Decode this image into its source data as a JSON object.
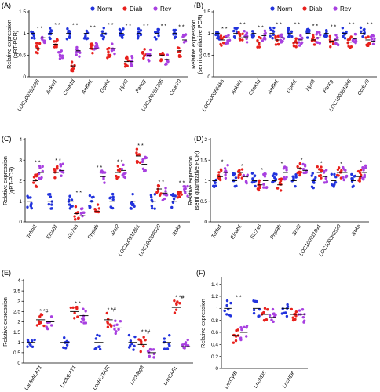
{
  "legend": [
    {
      "name": "Norm",
      "color": "#2233dd"
    },
    {
      "name": "Diab",
      "color": "#e8201c"
    },
    {
      "name": "Rev",
      "color": "#a840e0"
    }
  ],
  "chart_data": [
    {
      "panel": "(A)",
      "type": "scatter",
      "ylabel_lines": [
        "Relative expression",
        "(qRT-PCR)"
      ],
      "ylim": [
        0,
        1.5
      ],
      "yticks": [
        0,
        0.5,
        1,
        1.5
      ],
      "categories": [
        "LOC100362486",
        "Ankef1",
        "Csnk1d",
        "Ankle1",
        "Gpr61",
        "Nprl3",
        "Fancg",
        "LOC100361265",
        "Ccdc70"
      ],
      "groups": [
        "Norm",
        "Diab",
        "Rev"
      ],
      "means": [
        [
          1.0,
          0.65,
          0.9
        ],
        [
          1.0,
          0.75,
          0.55
        ],
        [
          1.0,
          0.25,
          0.6
        ],
        [
          1.0,
          0.65,
          0.65
        ],
        [
          1.0,
          0.55,
          0.65
        ],
        [
          1.0,
          0.35,
          0.35
        ],
        [
          1.0,
          0.55,
          0.5
        ],
        [
          1.0,
          0.5,
          0.4
        ],
        [
          1.0,
          0.6,
          0.85
        ]
      ],
      "stars": [
        "* *",
        "* *",
        "* *",
        "* *",
        "* *",
        "* *",
        "* *",
        "* *",
        "* *"
      ]
    },
    {
      "panel": "(B)",
      "type": "scatter",
      "ylabel_lines": [
        "Relative expression",
        "(semi quantitative PCR)"
      ],
      "ylim": [
        0,
        1.5
      ],
      "yticks": [
        0,
        0.5,
        1,
        1.5
      ],
      "categories": [
        "LOC100362486",
        "Ankef1",
        "Csnk1d",
        "Ankle1",
        "Gpr61",
        "Nprl3",
        "Fancg",
        "LOC100361265",
        "Ccdc70"
      ],
      "groups": [
        "Norm",
        "Diab",
        "Rev"
      ],
      "means": [
        [
          1.0,
          0.85,
          0.9
        ],
        [
          1.0,
          0.9,
          0.92
        ],
        [
          1.0,
          0.8,
          0.95
        ],
        [
          1.0,
          0.85,
          0.9
        ],
        [
          1.0,
          0.8,
          0.85
        ],
        [
          1.0,
          0.85,
          0.9
        ],
        [
          1.0,
          0.82,
          0.85
        ],
        [
          1.0,
          0.8,
          0.88
        ],
        [
          1.0,
          0.85,
          0.82
        ]
      ],
      "stars": [
        "* *",
        "* *",
        "* *",
        "* *",
        "* *",
        "* *",
        "* *",
        "* *",
        "* *"
      ]
    },
    {
      "panel": "(C)",
      "type": "scatter",
      "ylabel_lines": [
        "Relative expression",
        "(qRT-PCR)"
      ],
      "ylim": [
        0,
        4
      ],
      "yticks": [
        0,
        1,
        2,
        3,
        4
      ],
      "categories": [
        "Tchhl1",
        "Efcab1",
        "Slc7a6",
        "Pnpl4b",
        "Srsf2",
        "LOC100911891",
        "LOC100363520",
        "Ikbke"
      ],
      "groups": [
        "Norm",
        "Diab",
        "Rev"
      ],
      "means": [
        [
          1.0,
          2.0,
          2.4
        ],
        [
          1.0,
          2.4,
          2.5
        ],
        [
          1.0,
          0.4,
          0.3
        ],
        [
          1.0,
          0.5,
          2.2
        ],
        [
          1.0,
          2.4,
          2.5
        ],
        [
          1.0,
          3.2,
          2.8
        ],
        [
          1.0,
          1.6,
          1.4
        ],
        [
          1.0,
          1.5,
          1.5
        ]
      ],
      "stars": [
        "* *",
        "* *",
        "* *",
        "* *",
        "* *",
        "* *",
        "* *",
        "* *"
      ]
    },
    {
      "panel": "(D)",
      "type": "scatter",
      "ylabel_lines": [
        "Relative expression",
        "(semi quantitative PCR)"
      ],
      "ylim": [
        0,
        2.0
      ],
      "yticks": [
        0,
        0.5,
        1,
        1.5,
        2.0
      ],
      "categories": [
        "Tchhl1",
        "Efcab1",
        "Slc7a6",
        "Pnpl4b",
        "Srsf2",
        "LOC100911891",
        "LOC100363520",
        "Ikbke"
      ],
      "groups": [
        "Norm",
        "Diab",
        "Rev"
      ],
      "means": [
        [
          1.0,
          1.1,
          1.2
        ],
        [
          1.0,
          1.2,
          1.1
        ],
        [
          1.0,
          0.9,
          1.0
        ],
        [
          1.0,
          0.9,
          1.2
        ],
        [
          1.0,
          1.3,
          1.25
        ],
        [
          1.0,
          1.2,
          1.1
        ],
        [
          1.0,
          1.2,
          1.2
        ],
        [
          1.0,
          1.1,
          1.2
        ]
      ],
      "stars": [
        "*",
        "*",
        "*",
        "*",
        "*",
        "*",
        "*",
        "*"
      ]
    },
    {
      "panel": "(E)",
      "type": "scatter",
      "ylabel_lines": [
        "Relative expression"
      ],
      "ylim": [
        0,
        4
      ],
      "yticks": [
        0,
        0.5,
        1,
        1.5,
        2,
        2.5,
        3,
        3.5,
        4
      ],
      "categories": [
        "LncMALAT1",
        "LncNEAT1",
        "LncHOTAIR",
        "LncMeg3",
        "LncCARL"
      ],
      "groups": [
        "Norm",
        "Diab",
        "Rev"
      ],
      "means": [
        [
          1.0,
          2.1,
          2.0
        ],
        [
          1.0,
          2.5,
          2.3
        ],
        [
          1.0,
          2.1,
          1.7
        ],
        [
          1.0,
          0.9,
          0.5
        ],
        [
          1.0,
          2.7,
          0.8
        ]
      ],
      "stars": [
        "* *#",
        "* *",
        "* *#",
        "* *#",
        "* *#"
      ]
    },
    {
      "panel": "(F)",
      "type": "scatter",
      "ylabel_lines": [
        "Relative expression"
      ],
      "ylim": [
        0,
        1.5
      ],
      "yticks": [
        0,
        0.2,
        0.4,
        0.6,
        0.8,
        1.0,
        1.2,
        1.4
      ],
      "categories": [
        "LncCytB",
        "LncND5",
        "LncND6"
      ],
      "groups": [
        "Norm",
        "Diab",
        "Rev"
      ],
      "means": [
        [
          1.0,
          0.55,
          0.6
        ],
        [
          1.0,
          0.9,
          0.85
        ],
        [
          1.0,
          0.9,
          0.9
        ]
      ],
      "stars": [
        "* *",
        "",
        ""
      ]
    }
  ]
}
